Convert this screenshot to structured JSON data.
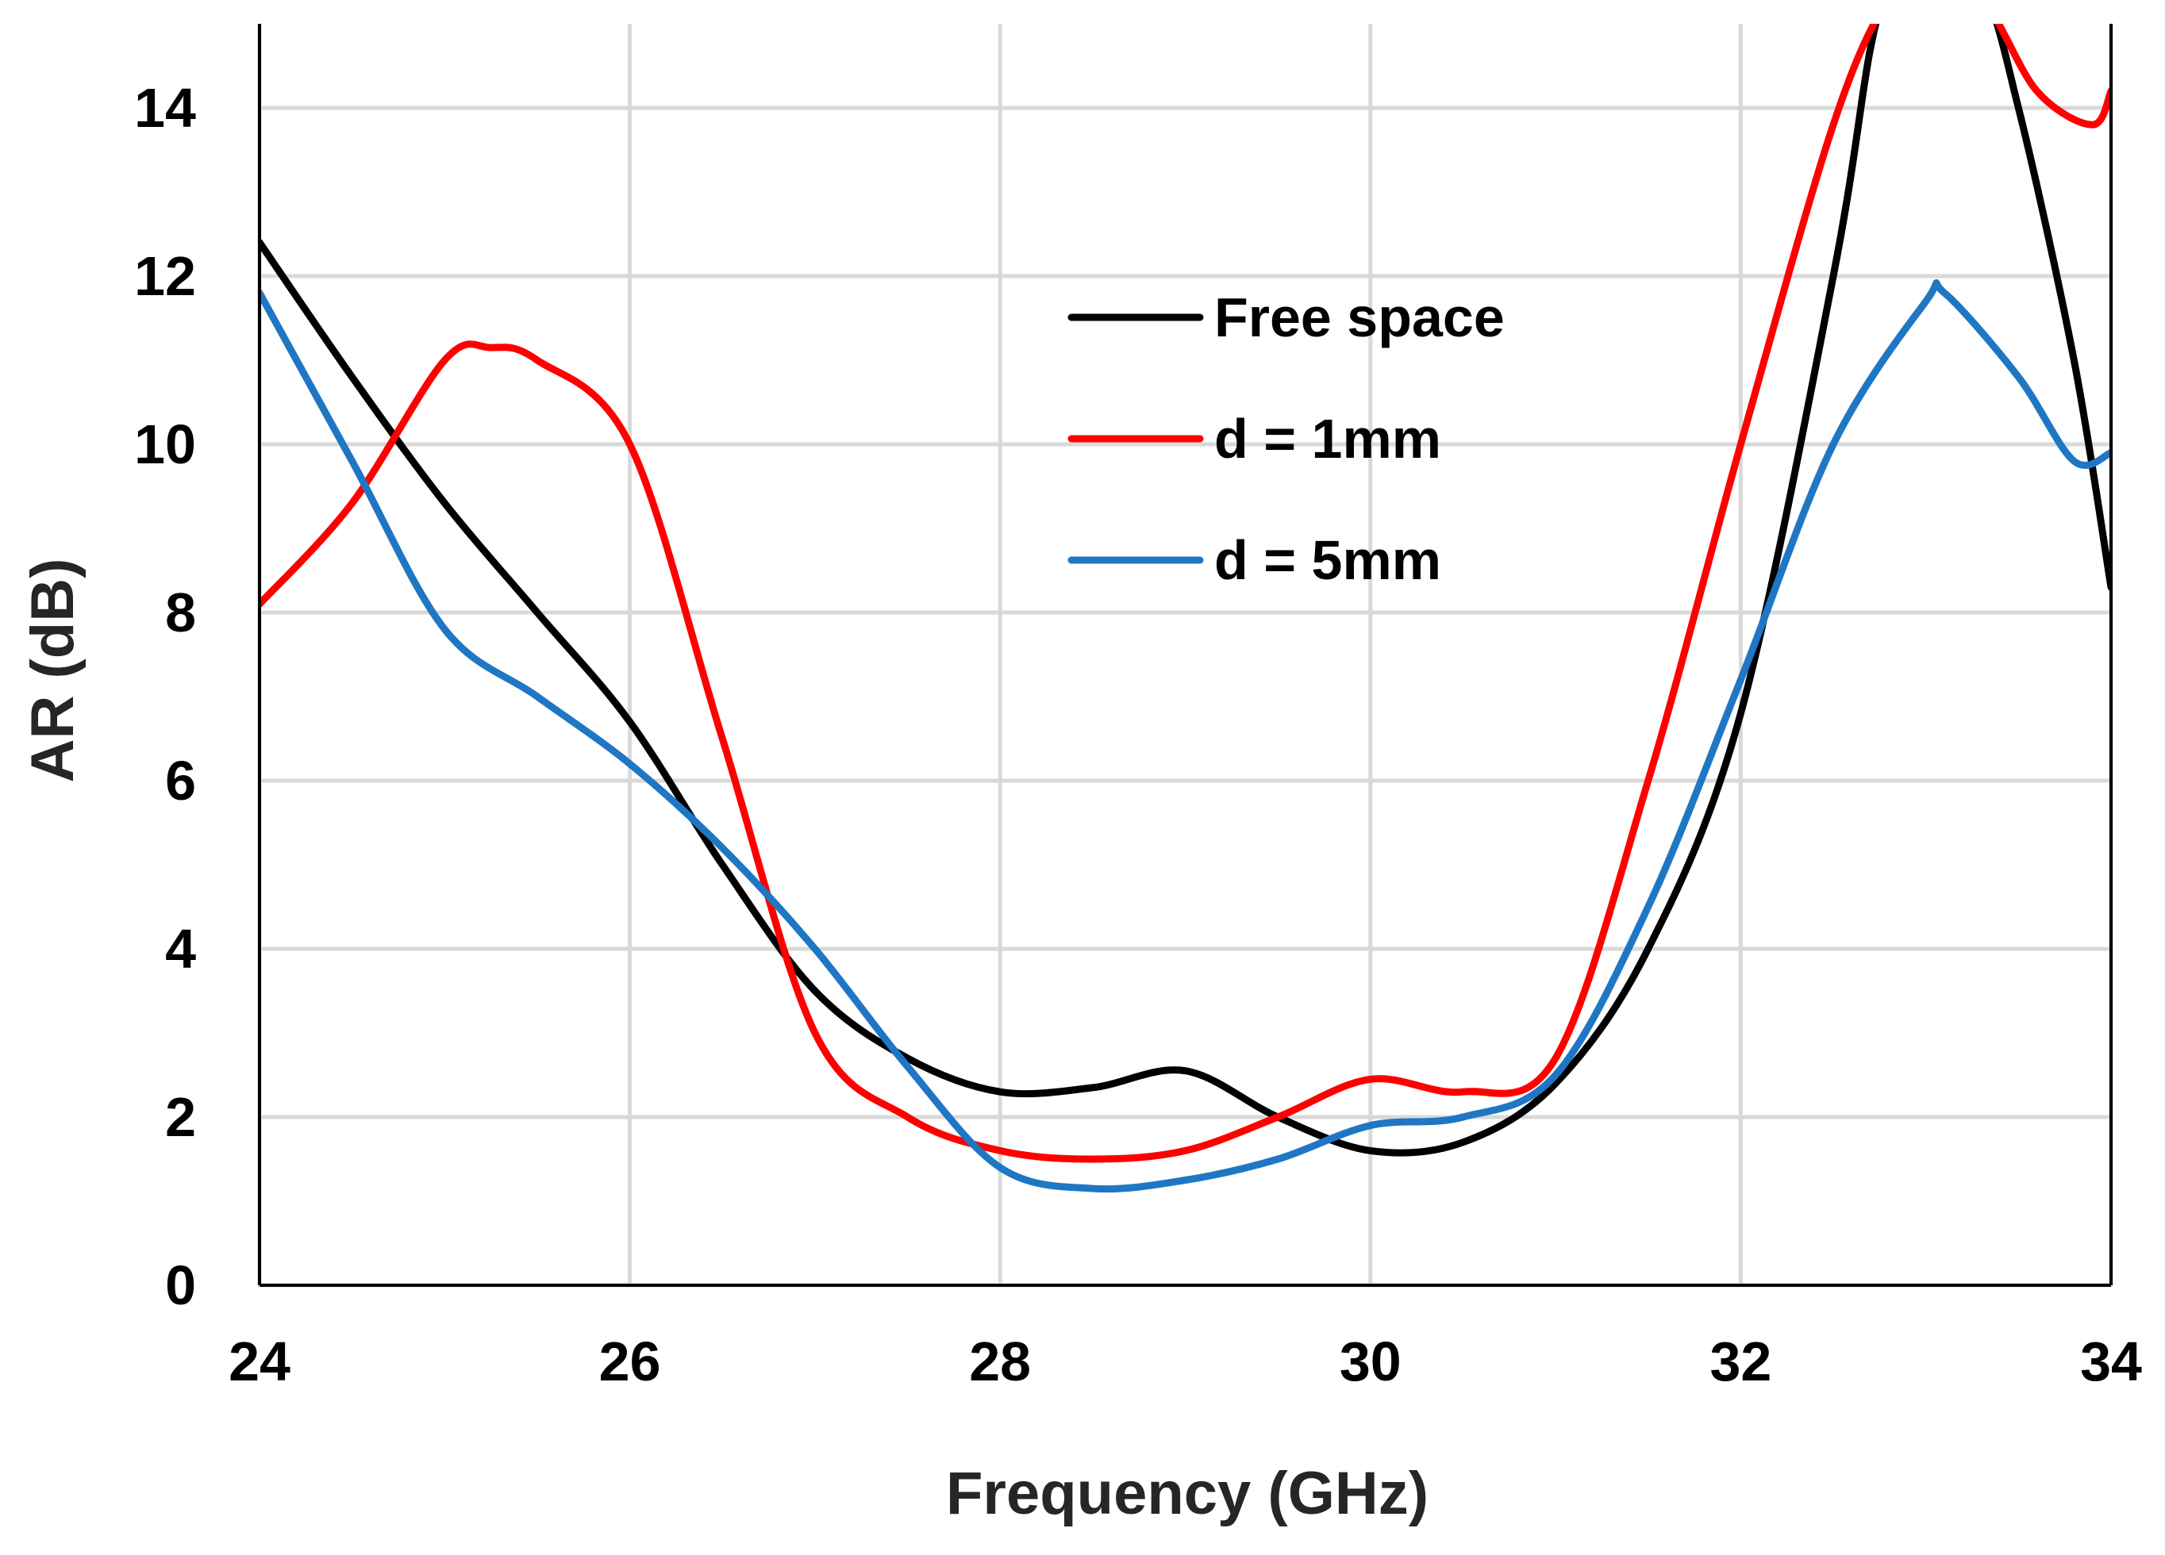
{
  "chart_data": {
    "type": "line",
    "title": "",
    "xlabel": "Frequency (GHz)",
    "ylabel": "AR (dB)",
    "xlim": [
      24,
      34
    ],
    "ylim": [
      0,
      15
    ],
    "xticks": [
      24,
      26,
      28,
      30,
      32,
      34
    ],
    "yticks": [
      0,
      2,
      4,
      6,
      8,
      10,
      12,
      14
    ],
    "grid": true,
    "legend_position": "upper-center",
    "series": [
      {
        "name": "Free space",
        "color": "#000000",
        "x": [
          24,
          24.5,
          25,
          25.5,
          26,
          26.5,
          27,
          27.5,
          28,
          28.5,
          29,
          29.5,
          30,
          30.5,
          31,
          31.5,
          32,
          32.5,
          32.7,
          32.8,
          33,
          33.3,
          33.5,
          33.8,
          34
        ],
        "y": [
          12.4,
          10.8,
          9.3,
          8.0,
          6.7,
          5.0,
          3.5,
          2.7,
          2.3,
          2.35,
          2.55,
          2.0,
          1.6,
          1.7,
          2.4,
          4.0,
          6.8,
          12.0,
          14.7,
          15.3,
          15.5,
          15.4,
          14.0,
          11.0,
          8.3
        ]
      },
      {
        "name": "d = 1mm",
        "color": "#ff0000",
        "x": [
          24,
          24.5,
          25,
          25.25,
          25.5,
          26,
          26.5,
          27,
          27.5,
          28,
          28.5,
          29,
          29.5,
          30,
          30.5,
          31,
          31.5,
          32,
          32.5,
          32.8,
          33,
          33.3,
          33.6,
          33.9,
          34
        ],
        "y": [
          8.1,
          9.3,
          11.0,
          11.15,
          11.0,
          10.0,
          6.5,
          3.0,
          2.0,
          1.6,
          1.5,
          1.6,
          2.0,
          2.45,
          2.3,
          2.7,
          6.0,
          10.0,
          13.8,
          15.3,
          15.5,
          15.3,
          14.2,
          13.8,
          14.2
        ]
      },
      {
        "name": "d = 5mm",
        "color": "#1f77c4",
        "x": [
          24,
          24.5,
          25,
          25.5,
          26,
          26.5,
          27,
          27.5,
          28,
          28.5,
          29,
          29.5,
          30,
          30.5,
          31,
          31.5,
          32,
          32.5,
          33,
          33.1,
          33.5,
          33.8,
          34
        ],
        "y": [
          11.8,
          9.8,
          7.8,
          7.0,
          6.2,
          5.2,
          4.0,
          2.6,
          1.4,
          1.15,
          1.25,
          1.5,
          1.9,
          2.0,
          2.5,
          4.5,
          7.2,
          10.0,
          11.7,
          11.8,
          10.8,
          9.8,
          9.9
        ]
      }
    ]
  }
}
